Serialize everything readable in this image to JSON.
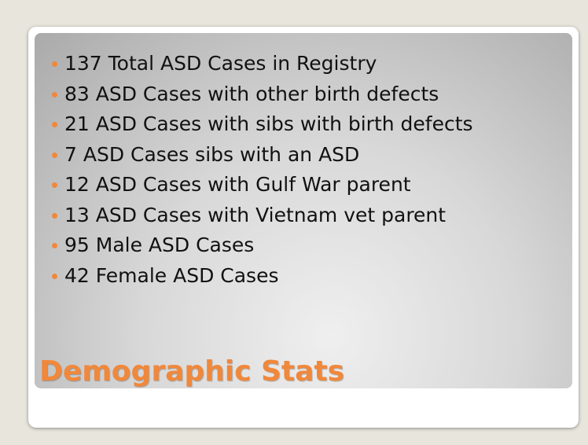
{
  "slide": {
    "title": "Demographic Stats",
    "bullets": [
      "137 Total ASD Cases in Registry",
      "83 ASD Cases with other birth defects",
      "21 ASD Cases with sibs with birth defects",
      "7 ASD Cases sibs with an ASD",
      "12 ASD Cases with Gulf War parent",
      "13 ASD Cases with Vietnam vet parent",
      "95 Male ASD Cases",
      "42 Female ASD Cases"
    ]
  }
}
